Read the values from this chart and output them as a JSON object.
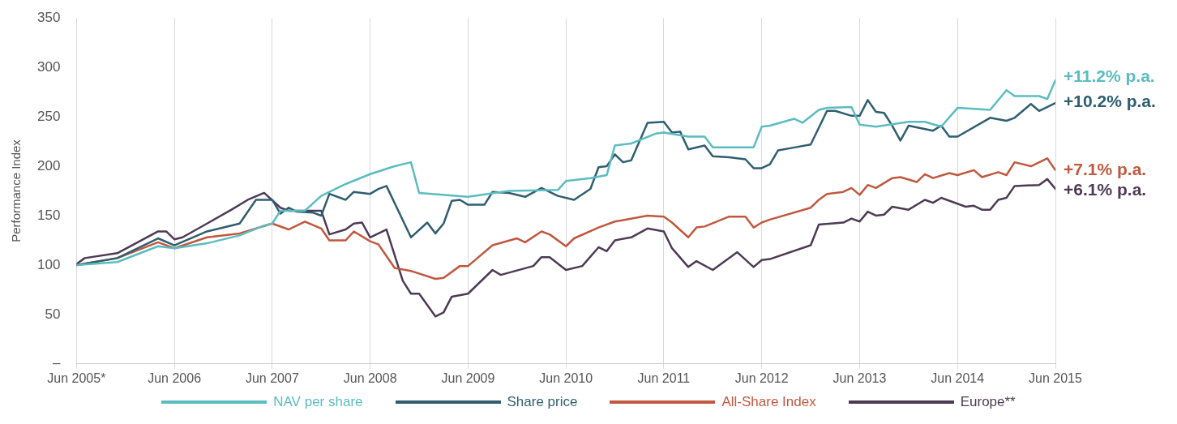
{
  "chart_data": {
    "type": "line",
    "ylabel": "Performance Index",
    "xlim": [
      "2005-06",
      "2015-06"
    ],
    "ylim": [
      0,
      350
    ],
    "xticks": [
      {
        "value": "2005-06",
        "label": "Jun 2005*"
      },
      {
        "value": "2006-06",
        "label": "Jun 2006"
      },
      {
        "value": "2007-06",
        "label": "Jun 2007"
      },
      {
        "value": "2008-06",
        "label": "Jun 2008"
      },
      {
        "value": "2009-06",
        "label": "Jun 2009"
      },
      {
        "value": "2010-06",
        "label": "Jun 2010"
      },
      {
        "value": "2011-06",
        "label": "Jun 2011"
      },
      {
        "value": "2012-06",
        "label": "Jun 2012"
      },
      {
        "value": "2013-06",
        "label": "Jun 2013"
      },
      {
        "value": "2014-06",
        "label": "Jun 2014"
      },
      {
        "value": "2015-06",
        "label": "Jun 2015"
      }
    ],
    "yticks": [
      {
        "value": 0,
        "label": "–"
      },
      50,
      100,
      150,
      200,
      250,
      300,
      350
    ],
    "grid": "x",
    "legend": "bottom",
    "marker": "none",
    "line_style": "solid",
    "series": [
      {
        "name": "NAV per share",
        "color": "#5bbcc0",
        "x": [
          "2005-06",
          "2005-11",
          "2006-04",
          "2006-06",
          "2006-10",
          "2007-02",
          "2007-05",
          "2007-06",
          "2007-07",
          "2007-10",
          "2007-12",
          "2008-03",
          "2008-06",
          "2008-09",
          "2008-11",
          "2008-12",
          "2009-06",
          "2009-11",
          "2010-05",
          "2010-06",
          "2010-09",
          "2010-11",
          "2010-12",
          "2011-02",
          "2011-05",
          "2011-06",
          "2011-09",
          "2011-11",
          "2011-12",
          "2012-05",
          "2012-06",
          "2012-07",
          "2012-10",
          "2012-11",
          "2013-01",
          "2013-02",
          "2013-05",
          "2013-06",
          "2013-08",
          "2013-12",
          "2014-02",
          "2014-04",
          "2014-06",
          "2014-10",
          "2014-12",
          "2015-01",
          "2015-04",
          "2015-05",
          "2015-06"
        ],
        "values": [
          100,
          103,
          119,
          117,
          122,
          130,
          140,
          142,
          155,
          155,
          170,
          182,
          192,
          200,
          204,
          173,
          169,
          175,
          176,
          185,
          188,
          191,
          221,
          223,
          233,
          234,
          230,
          230,
          219,
          219,
          240,
          241,
          248,
          244,
          257,
          259,
          260,
          242,
          240,
          245,
          245,
          240,
          259,
          257,
          277,
          271,
          271,
          268,
          287
        ]
      },
      {
        "name": "Share price",
        "color": "#2f5e70",
        "x": [
          "2005-06",
          "2005-11",
          "2006-04",
          "2006-06",
          "2006-10",
          "2007-02",
          "2007-04",
          "2007-06",
          "2007-07",
          "2007-08",
          "2007-09",
          "2007-11",
          "2007-12",
          "2008-01",
          "2008-03",
          "2008-04",
          "2008-06",
          "2008-07",
          "2008-08",
          "2008-11",
          "2009-01",
          "2009-02",
          "2009-03",
          "2009-04",
          "2009-05",
          "2009-06",
          "2009-08",
          "2009-09",
          "2009-11",
          "2010-01",
          "2010-03",
          "2010-05",
          "2010-07",
          "2010-09",
          "2010-10",
          "2010-11",
          "2010-12",
          "2011-01",
          "2011-02",
          "2011-04",
          "2011-06",
          "2011-07",
          "2011-08",
          "2011-09",
          "2011-11",
          "2011-12",
          "2012-02",
          "2012-04",
          "2012-05",
          "2012-06",
          "2012-07",
          "2012-08",
          "2012-10",
          "2012-12",
          "2013-02",
          "2013-03",
          "2013-05",
          "2013-06",
          "2013-07",
          "2013-08",
          "2013-09",
          "2013-10",
          "2013-11",
          "2013-12",
          "2014-03",
          "2014-04",
          "2014-05",
          "2014-06",
          "2014-10",
          "2014-12",
          "2015-01",
          "2015-03",
          "2015-04",
          "2015-06"
        ],
        "values": [
          100,
          107,
          127,
          120,
          134,
          142,
          166,
          166,
          152,
          158,
          154,
          153,
          150,
          172,
          166,
          174,
          172,
          177,
          180,
          128,
          143,
          132,
          142,
          165,
          166,
          161,
          161,
          174,
          173,
          169,
          178,
          170,
          166,
          177,
          199,
          200,
          212,
          204,
          206,
          244,
          245,
          234,
          235,
          217,
          221,
          210,
          209,
          207,
          198,
          198,
          202,
          216,
          219,
          222,
          256,
          256,
          251,
          251,
          267,
          255,
          254,
          241,
          226,
          241,
          236,
          241,
          230,
          230,
          249,
          246,
          249,
          263,
          256,
          264
        ]
      },
      {
        "name": "All-Share Index",
        "color": "#c0583f",
        "x": [
          "2005-06",
          "2005-11",
          "2006-04",
          "2006-06",
          "2006-10",
          "2007-02",
          "2007-06",
          "2007-08",
          "2007-10",
          "2007-12",
          "2008-01",
          "2008-03",
          "2008-04",
          "2008-06",
          "2008-07",
          "2008-09",
          "2008-11",
          "2009-02",
          "2009-03",
          "2009-05",
          "2009-06",
          "2009-09",
          "2009-12",
          "2010-01",
          "2010-03",
          "2010-04",
          "2010-06",
          "2010-07",
          "2010-10",
          "2010-12",
          "2011-04",
          "2011-06",
          "2011-07",
          "2011-09",
          "2011-10",
          "2011-11",
          "2012-02",
          "2012-04",
          "2012-05",
          "2012-06",
          "2012-07",
          "2012-12",
          "2013-01",
          "2013-02",
          "2013-04",
          "2013-05",
          "2013-06",
          "2013-07",
          "2013-08",
          "2013-10",
          "2013-11",
          "2014-01",
          "2014-02",
          "2014-03",
          "2014-05",
          "2014-06",
          "2014-08",
          "2014-09",
          "2014-11",
          "2014-12",
          "2015-01",
          "2015-03",
          "2015-05",
          "2015-06"
        ],
        "values": [
          100,
          107,
          123,
          117,
          128,
          132,
          142,
          136,
          144,
          137,
          125,
          125,
          134,
          124,
          121,
          97,
          94,
          86,
          87,
          99,
          99,
          120,
          127,
          123,
          134,
          131,
          119,
          127,
          138,
          144,
          150,
          149,
          143,
          128,
          138,
          139,
          149,
          149,
          138,
          143,
          146,
          158,
          166,
          172,
          174,
          178,
          171,
          181,
          178,
          188,
          189,
          184,
          192,
          188,
          193,
          191,
          196,
          189,
          194,
          191,
          204,
          200,
          208,
          196
        ]
      },
      {
        "name": "Europe**",
        "color": "#4d3a55",
        "x": [
          "2005-06",
          "2005-07",
          "2005-11",
          "2006-04",
          "2006-05",
          "2006-06",
          "2006-07",
          "2006-10",
          "2007-01",
          "2007-03",
          "2007-05",
          "2007-07",
          "2007-08",
          "2007-12",
          "2008-01",
          "2008-03",
          "2008-04",
          "2008-05",
          "2008-06",
          "2008-08",
          "2008-10",
          "2008-11",
          "2008-12",
          "2009-02",
          "2009-03",
          "2009-04",
          "2009-06",
          "2009-09",
          "2009-10",
          "2010-02",
          "2010-03",
          "2010-04",
          "2010-06",
          "2010-08",
          "2010-10",
          "2010-11",
          "2010-12",
          "2011-02",
          "2011-04",
          "2011-06",
          "2011-07",
          "2011-09",
          "2011-10",
          "2011-12",
          "2012-03",
          "2012-05",
          "2012-06",
          "2012-07",
          "2012-12",
          "2013-01",
          "2013-04",
          "2013-05",
          "2013-06",
          "2013-07",
          "2013-08",
          "2013-09",
          "2013-10",
          "2013-12",
          "2014-02",
          "2014-03",
          "2014-04",
          "2014-07",
          "2014-08",
          "2014-09",
          "2014-10",
          "2014-11",
          "2014-12",
          "2015-01",
          "2015-04",
          "2015-05",
          "2015-06"
        ],
        "values": [
          101,
          107,
          112,
          134,
          134,
          126,
          128,
          142,
          156,
          166,
          173,
          158,
          155,
          155,
          131,
          136,
          142,
          143,
          128,
          136,
          84,
          71,
          71,
          48,
          52,
          68,
          71,
          95,
          90,
          99,
          108,
          108,
          95,
          99,
          118,
          114,
          125,
          128,
          137,
          134,
          117,
          98,
          104,
          95,
          113,
          98,
          105,
          106,
          120,
          141,
          143,
          147,
          144,
          154,
          150,
          151,
          159,
          156,
          166,
          163,
          168,
          159,
          160,
          156,
          156,
          166,
          168,
          180,
          181,
          187,
          177
        ]
      }
    ],
    "annotations": [
      {
        "text": "+11.2% p.a.",
        "x": "2015-06",
        "y": 290
      },
      {
        "text": "+10.2% p.a.",
        "x": "2015-06",
        "y": 265
      },
      {
        "text": "+7.1% p.a.",
        "x": "2015-06",
        "y": 196
      },
      {
        "text": "+6.1% p.a.",
        "x": "2015-06",
        "y": 175
      }
    ]
  }
}
